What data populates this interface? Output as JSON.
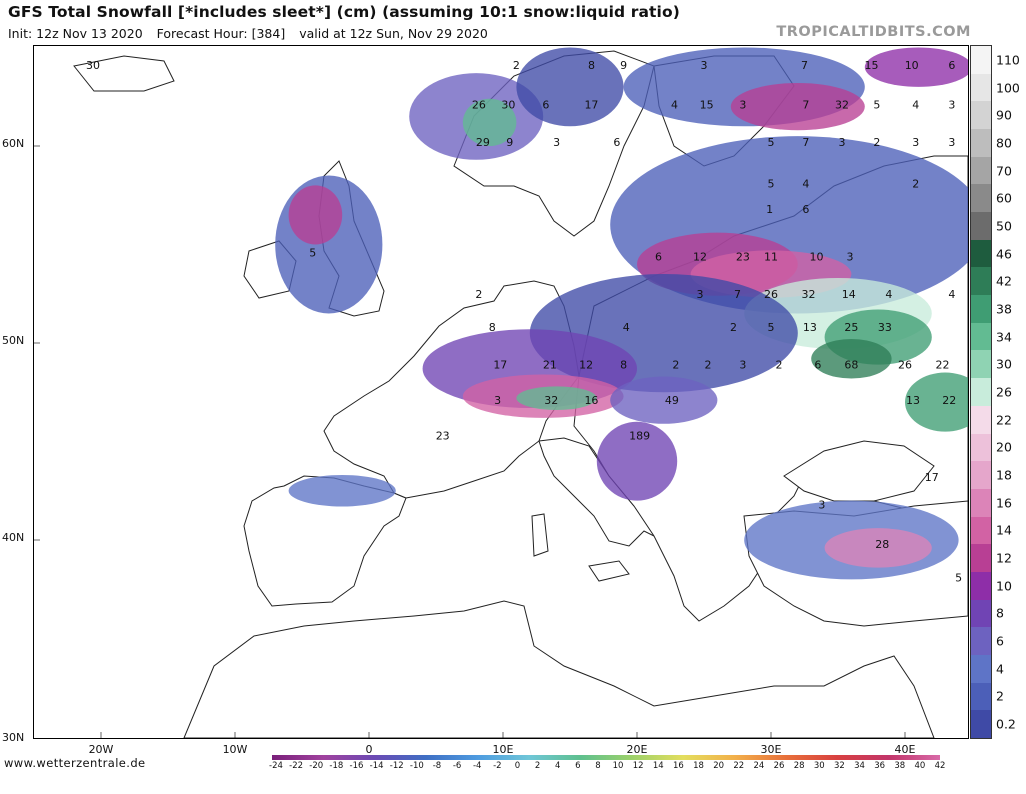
{
  "header": {
    "title": "GFS Total Snowfall [*includes sleet*] (cm) (assuming 10:1 snow:liquid ratio)",
    "init": "Init: 12z Nov 13 2020",
    "forecast_hour": "Forecast Hour: [384]",
    "valid": "valid at 12z Sun, Nov 29 2020",
    "brand": "TROPICALTIDBITS.COM"
  },
  "footer": {
    "source": "www.wetterzentrale.de"
  },
  "axes": {
    "lat_labels": [
      "60N",
      "50N",
      "40N",
      "30N"
    ],
    "lon_labels": [
      "20W",
      "10W",
      "0",
      "10E",
      "20E",
      "30E",
      "40E"
    ]
  },
  "colorbar": {
    "labels": [
      "110",
      "100",
      "90",
      "80",
      "70",
      "60",
      "50",
      "46",
      "42",
      "38",
      "34",
      "30",
      "26",
      "22",
      "20",
      "18",
      "16",
      "14",
      "12",
      "10",
      "8",
      "6",
      "4",
      "2",
      "0.2"
    ],
    "colors": [
      "#f4f4f4",
      "#e6e6e6",
      "#d3d3d3",
      "#bdbdbd",
      "#a5a5a5",
      "#8a8a8a",
      "#6c6c6c",
      "#1e5c3e",
      "#2e7d57",
      "#3f9d73",
      "#62bb92",
      "#8fd3b3",
      "#c8ecdb",
      "#f4dbe9",
      "#edc1da",
      "#e5a6cb",
      "#dc84b8",
      "#d262a4",
      "#b83f94",
      "#8e2ea8",
      "#7044b4",
      "#6d62c0",
      "#5e74c7",
      "#4c5fb8",
      "#3f4aa6"
    ]
  },
  "temp_scale": {
    "labels": [
      "-24",
      "-22",
      "-20",
      "-18",
      "-16",
      "-14",
      "-12",
      "-10",
      "-8",
      "-6",
      "-4",
      "-2",
      "0",
      "2",
      "4",
      "6",
      "8",
      "10",
      "12",
      "14",
      "16",
      "18",
      "20",
      "22",
      "24",
      "26",
      "28",
      "30",
      "32",
      "34",
      "36",
      "38",
      "40",
      "42"
    ],
    "colors": [
      "#7a1f7a",
      "#a0429e",
      "#6b4ab4",
      "#3f6fc4",
      "#4e9be0",
      "#6fc6d8",
      "#5ec08e",
      "#9cd16a",
      "#e3de5e",
      "#f2b04a",
      "#e8703a",
      "#d84040",
      "#c2356a",
      "#d86aa8"
    ]
  },
  "snow_values": [
    {
      "v": "30",
      "lon": -20.6,
      "lat": 64.1
    },
    {
      "v": "26",
      "lon": 8.2,
      "lat": 62.1
    },
    {
      "v": "30",
      "lon": 10.4,
      "lat": 62.1
    },
    {
      "v": "6",
      "lon": 13.2,
      "lat": 62.1
    },
    {
      "v": "17",
      "lon": 16.6,
      "lat": 62.1
    },
    {
      "v": "29",
      "lon": 8.5,
      "lat": 60.2
    },
    {
      "v": "9",
      "lon": 10.5,
      "lat": 60.2
    },
    {
      "v": "3",
      "lon": 14.0,
      "lat": 60.2
    },
    {
      "v": "6",
      "lon": 18.5,
      "lat": 60.2
    },
    {
      "v": "2",
      "lon": 11.0,
      "lat": 64.1
    },
    {
      "v": "8",
      "lon": 16.6,
      "lat": 64.1
    },
    {
      "v": "9",
      "lon": 19.0,
      "lat": 64.1
    },
    {
      "v": "3",
      "lon": 25.0,
      "lat": 64.1
    },
    {
      "v": "7",
      "lon": 32.5,
      "lat": 64.1
    },
    {
      "v": "15",
      "lon": 37.5,
      "lat": 64.1
    },
    {
      "v": "10",
      "lon": 40.5,
      "lat": 64.1
    },
    {
      "v": "6",
      "lon": 43.5,
      "lat": 64.1
    },
    {
      "v": "4",
      "lon": 22.8,
      "lat": 62.1
    },
    {
      "v": "15",
      "lon": 25.2,
      "lat": 62.1
    },
    {
      "v": "3",
      "lon": 27.9,
      "lat": 62.1
    },
    {
      "v": "7",
      "lon": 32.6,
      "lat": 62.1
    },
    {
      "v": "32",
      "lon": 35.3,
      "lat": 62.1
    },
    {
      "v": "5",
      "lon": 37.9,
      "lat": 62.1
    },
    {
      "v": "4",
      "lon": 40.8,
      "lat": 62.1
    },
    {
      "v": "3",
      "lon": 43.5,
      "lat": 62.1
    },
    {
      "v": "5",
      "lon": 30.0,
      "lat": 60.2
    },
    {
      "v": "7",
      "lon": 32.6,
      "lat": 60.2
    },
    {
      "v": "3",
      "lon": 35.3,
      "lat": 60.2
    },
    {
      "v": "2",
      "lon": 37.9,
      "lat": 60.2
    },
    {
      "v": "3",
      "lon": 40.8,
      "lat": 60.2
    },
    {
      "v": "3",
      "lon": 43.5,
      "lat": 60.2
    },
    {
      "v": "5",
      "lon": 30.0,
      "lat": 58.1
    },
    {
      "v": "4",
      "lon": 32.6,
      "lat": 58.1
    },
    {
      "v": "2",
      "lon": 40.8,
      "lat": 58.1
    },
    {
      "v": "5",
      "lon": -4.2,
      "lat": 54.6
    },
    {
      "v": "1",
      "lon": 29.9,
      "lat": 56.8
    },
    {
      "v": "6",
      "lon": 32.6,
      "lat": 56.8
    },
    {
      "v": "6",
      "lon": 21.6,
      "lat": 54.4
    },
    {
      "v": "12",
      "lon": 24.7,
      "lat": 54.4
    },
    {
      "v": "23",
      "lon": 27.9,
      "lat": 54.4
    },
    {
      "v": "11",
      "lon": 30.0,
      "lat": 54.4
    },
    {
      "v": "10",
      "lon": 33.4,
      "lat": 54.4
    },
    {
      "v": "3",
      "lon": 35.9,
      "lat": 54.4
    },
    {
      "v": "2",
      "lon": 8.2,
      "lat": 52.5
    },
    {
      "v": "3",
      "lon": 24.7,
      "lat": 52.5
    },
    {
      "v": "7",
      "lon": 27.5,
      "lat": 52.5
    },
    {
      "v": "26",
      "lon": 30.0,
      "lat": 52.5
    },
    {
      "v": "32",
      "lon": 32.8,
      "lat": 52.5
    },
    {
      "v": "14",
      "lon": 35.8,
      "lat": 52.5
    },
    {
      "v": "4",
      "lon": 38.8,
      "lat": 52.5
    },
    {
      "v": "4",
      "lon": 43.5,
      "lat": 52.5
    },
    {
      "v": "8",
      "lon": 9.2,
      "lat": 50.8
    },
    {
      "v": "4",
      "lon": 19.2,
      "lat": 50.8
    },
    {
      "v": "2",
      "lon": 27.2,
      "lat": 50.8
    },
    {
      "v": "5",
      "lon": 30.0,
      "lat": 50.8
    },
    {
      "v": "13",
      "lon": 32.9,
      "lat": 50.8
    },
    {
      "v": "25",
      "lon": 36.0,
      "lat": 50.8
    },
    {
      "v": "33",
      "lon": 38.5,
      "lat": 50.8
    },
    {
      "v": "17",
      "lon": 9.8,
      "lat": 48.9
    },
    {
      "v": "21",
      "lon": 13.5,
      "lat": 48.9
    },
    {
      "v": "12",
      "lon": 16.2,
      "lat": 48.9
    },
    {
      "v": "8",
      "lon": 19.0,
      "lat": 48.9
    },
    {
      "v": "2",
      "lon": 22.9,
      "lat": 48.9
    },
    {
      "v": "2",
      "lon": 25.3,
      "lat": 48.9
    },
    {
      "v": "3",
      "lon": 27.9,
      "lat": 48.9
    },
    {
      "v": "2",
      "lon": 30.6,
      "lat": 48.9
    },
    {
      "v": "6",
      "lon": 33.5,
      "lat": 48.9
    },
    {
      "v": "68",
      "lon": 36.0,
      "lat": 48.9
    },
    {
      "v": "26",
      "lon": 40.0,
      "lat": 48.9
    },
    {
      "v": "22",
      "lon": 42.8,
      "lat": 48.9
    },
    {
      "v": "3",
      "lon": 9.6,
      "lat": 47.1
    },
    {
      "v": "32",
      "lon": 13.6,
      "lat": 47.1
    },
    {
      "v": "16",
      "lon": 16.6,
      "lat": 47.1
    },
    {
      "v": "49",
      "lon": 22.6,
      "lat": 47.1
    },
    {
      "v": "13",
      "lon": 40.6,
      "lat": 47.1
    },
    {
      "v": "22",
      "lon": 43.3,
      "lat": 47.1
    },
    {
      "v": "23",
      "lon": 5.5,
      "lat": 45.3
    },
    {
      "v": "189",
      "lon": 20.2,
      "lat": 45.3
    },
    {
      "v": "17",
      "lon": 42.0,
      "lat": 43.2
    },
    {
      "v": "3",
      "lon": 33.8,
      "lat": 41.8
    },
    {
      "v": "28",
      "lon": 38.3,
      "lat": 39.8
    },
    {
      "v": "5",
      "lon": 44.0,
      "lat": 38.1
    }
  ]
}
